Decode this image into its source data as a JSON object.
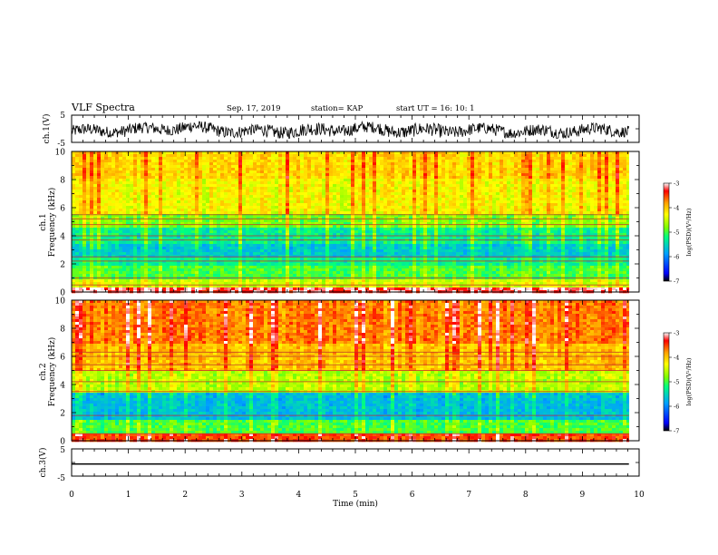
{
  "header": {
    "title": "VLF Spectra",
    "date": "Sep. 17, 2019",
    "station": "station= KAP",
    "start": "start  UT  =   16: 10: 1"
  },
  "panels": {
    "ch1_waveform": {
      "ylabel": "ch.1(V)",
      "y_ticks": [
        "5",
        "-5"
      ],
      "ylim": [
        -5,
        5
      ]
    },
    "ch1_spectrogram": {
      "ylabel_line1": "ch.1",
      "ylabel_line2": "Frequency  (kHz)",
      "y_ticks": [
        "10",
        "8",
        "6",
        "4",
        "2",
        "0"
      ]
    },
    "ch2_spectrogram": {
      "ylabel_line1": "ch.2",
      "ylabel_line2": "Frequency  (kHz)",
      "y_ticks": [
        "10",
        "8",
        "6",
        "4",
        "2",
        "0"
      ]
    },
    "ch3_waveform": {
      "ylabel": "ch.3(V)",
      "y_ticks": [
        "5",
        "-5"
      ],
      "ylim": [
        -5,
        5
      ]
    }
  },
  "x_axis": {
    "label": "Time  (min)",
    "ticks": [
      "0",
      "1",
      "2",
      "3",
      "4",
      "5",
      "6",
      "7",
      "8",
      "9",
      "10"
    ]
  },
  "colorbar": {
    "label": "log(PSD)(V²/Hz)",
    "ticks": [
      "-3",
      "-4",
      "-5",
      "-6",
      "-7"
    ],
    "colors": [
      "#000000",
      "#0000ff",
      "#00a0ff",
      "#00ff80",
      "#80ff00",
      "#ffff00",
      "#ffa000",
      "#ff0000",
      "#ffffff"
    ]
  },
  "chart_data": [
    {
      "type": "line",
      "name": "ch.1 waveform",
      "xlim": [
        0,
        10
      ],
      "ylim": [
        -5,
        5
      ],
      "x_end": 9.82,
      "envelope": [
        {
          "x": 0.0,
          "y_min": -3.5,
          "y_max": 1.5
        },
        {
          "x": 1.0,
          "y_min": -3.0,
          "y_max": 2.0
        },
        {
          "x": 2.0,
          "y_min": -2.0,
          "y_max": 3.0
        },
        {
          "x": 3.0,
          "y_min": -3.5,
          "y_max": 1.5
        },
        {
          "x": 4.0,
          "y_min": -3.5,
          "y_max": 2.0
        },
        {
          "x": 5.0,
          "y_min": -2.5,
          "y_max": 2.5
        },
        {
          "x": 6.0,
          "y_min": -3.5,
          "y_max": 2.0
        },
        {
          "x": 7.0,
          "y_min": -3.0,
          "y_max": 2.0
        },
        {
          "x": 8.0,
          "y_min": -3.5,
          "y_max": 1.5
        },
        {
          "x": 9.0,
          "y_min": -3.0,
          "y_max": 2.0
        }
      ]
    },
    {
      "type": "heatmap",
      "name": "ch.1 spectrogram",
      "xlim": [
        0,
        10
      ],
      "ylim": [
        0,
        10
      ],
      "x_end": 9.82,
      "zlim": [
        -7,
        -3
      ],
      "bands": [
        {
          "f_min": 0.0,
          "f_max": 0.3,
          "log_psd": -3.2
        },
        {
          "f_min": 0.3,
          "f_max": 1.0,
          "log_psd": -4.5
        },
        {
          "f_min": 1.0,
          "f_max": 1.8,
          "log_psd": -5.0
        },
        {
          "f_min": 1.8,
          "f_max": 2.5,
          "log_psd": -5.3
        },
        {
          "f_min": 2.5,
          "f_max": 3.5,
          "log_psd": -5.6
        },
        {
          "f_min": 3.5,
          "f_max": 4.5,
          "log_psd": -5.3
        },
        {
          "f_min": 4.5,
          "f_max": 5.5,
          "log_psd": -4.8
        },
        {
          "f_min": 5.5,
          "f_max": 8.0,
          "log_psd": -4.3
        },
        {
          "f_min": 8.0,
          "f_max": 10.0,
          "log_psd": -4.1
        }
      ],
      "lines_khz": [
        0.5,
        1.0,
        2.2,
        2.5,
        3.7,
        4.0,
        4.8,
        5.2,
        5.5
      ]
    },
    {
      "type": "heatmap",
      "name": "ch.2 spectrogram",
      "xlim": [
        0,
        10
      ],
      "ylim": [
        0,
        10
      ],
      "x_end": 9.82,
      "zlim": [
        -7,
        -3
      ],
      "bands": [
        {
          "f_min": 0.0,
          "f_max": 0.5,
          "log_psd": -3.5
        },
        {
          "f_min": 0.5,
          "f_max": 1.5,
          "log_psd": -5.0
        },
        {
          "f_min": 1.5,
          "f_max": 3.5,
          "log_psd": -5.7
        },
        {
          "f_min": 3.5,
          "f_max": 5.0,
          "log_psd": -4.6
        },
        {
          "f_min": 5.0,
          "f_max": 7.0,
          "log_psd": -4.0
        },
        {
          "f_min": 7.0,
          "f_max": 10.0,
          "log_psd": -3.7
        }
      ],
      "lines_khz": [
        0.5,
        1.8,
        3.5,
        4.2,
        5.0,
        5.4,
        6.0,
        6.3
      ]
    },
    {
      "type": "line",
      "name": "ch.3 waveform",
      "xlim": [
        0,
        10
      ],
      "ylim": [
        -5,
        5
      ],
      "x_end": 9.82,
      "envelope": [
        {
          "x": 0.0,
          "y_min": -0.8,
          "y_max": -0.3
        },
        {
          "x": 9.82,
          "y_min": -0.8,
          "y_max": -0.3
        }
      ]
    }
  ]
}
